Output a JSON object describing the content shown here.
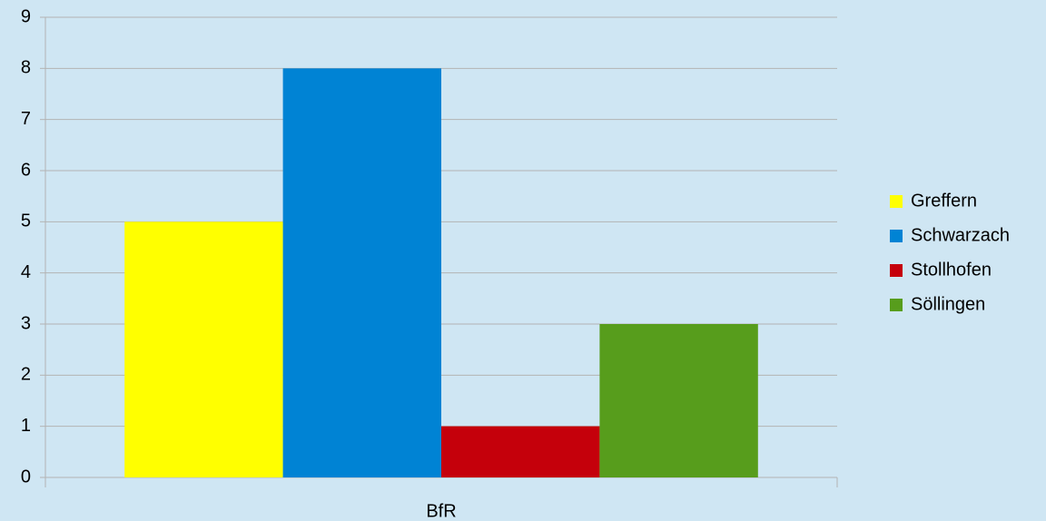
{
  "chart_data": {
    "type": "bar",
    "categories": [
      "BfR"
    ],
    "series": [
      {
        "name": "Greffern",
        "color": "#ffff00",
        "values": [
          5
        ]
      },
      {
        "name": "Schwarzach",
        "color": "#0083d4",
        "values": [
          8
        ]
      },
      {
        "name": "Stollhofen",
        "color": "#c5000b",
        "values": [
          1
        ]
      },
      {
        "name": "Söllingen",
        "color": "#579d1c",
        "values": [
          3
        ]
      }
    ],
    "ylim": [
      0,
      9
    ],
    "yticks": [
      0,
      1,
      2,
      3,
      4,
      5,
      6,
      7,
      8,
      9
    ],
    "grid": true,
    "legend": "right"
  }
}
